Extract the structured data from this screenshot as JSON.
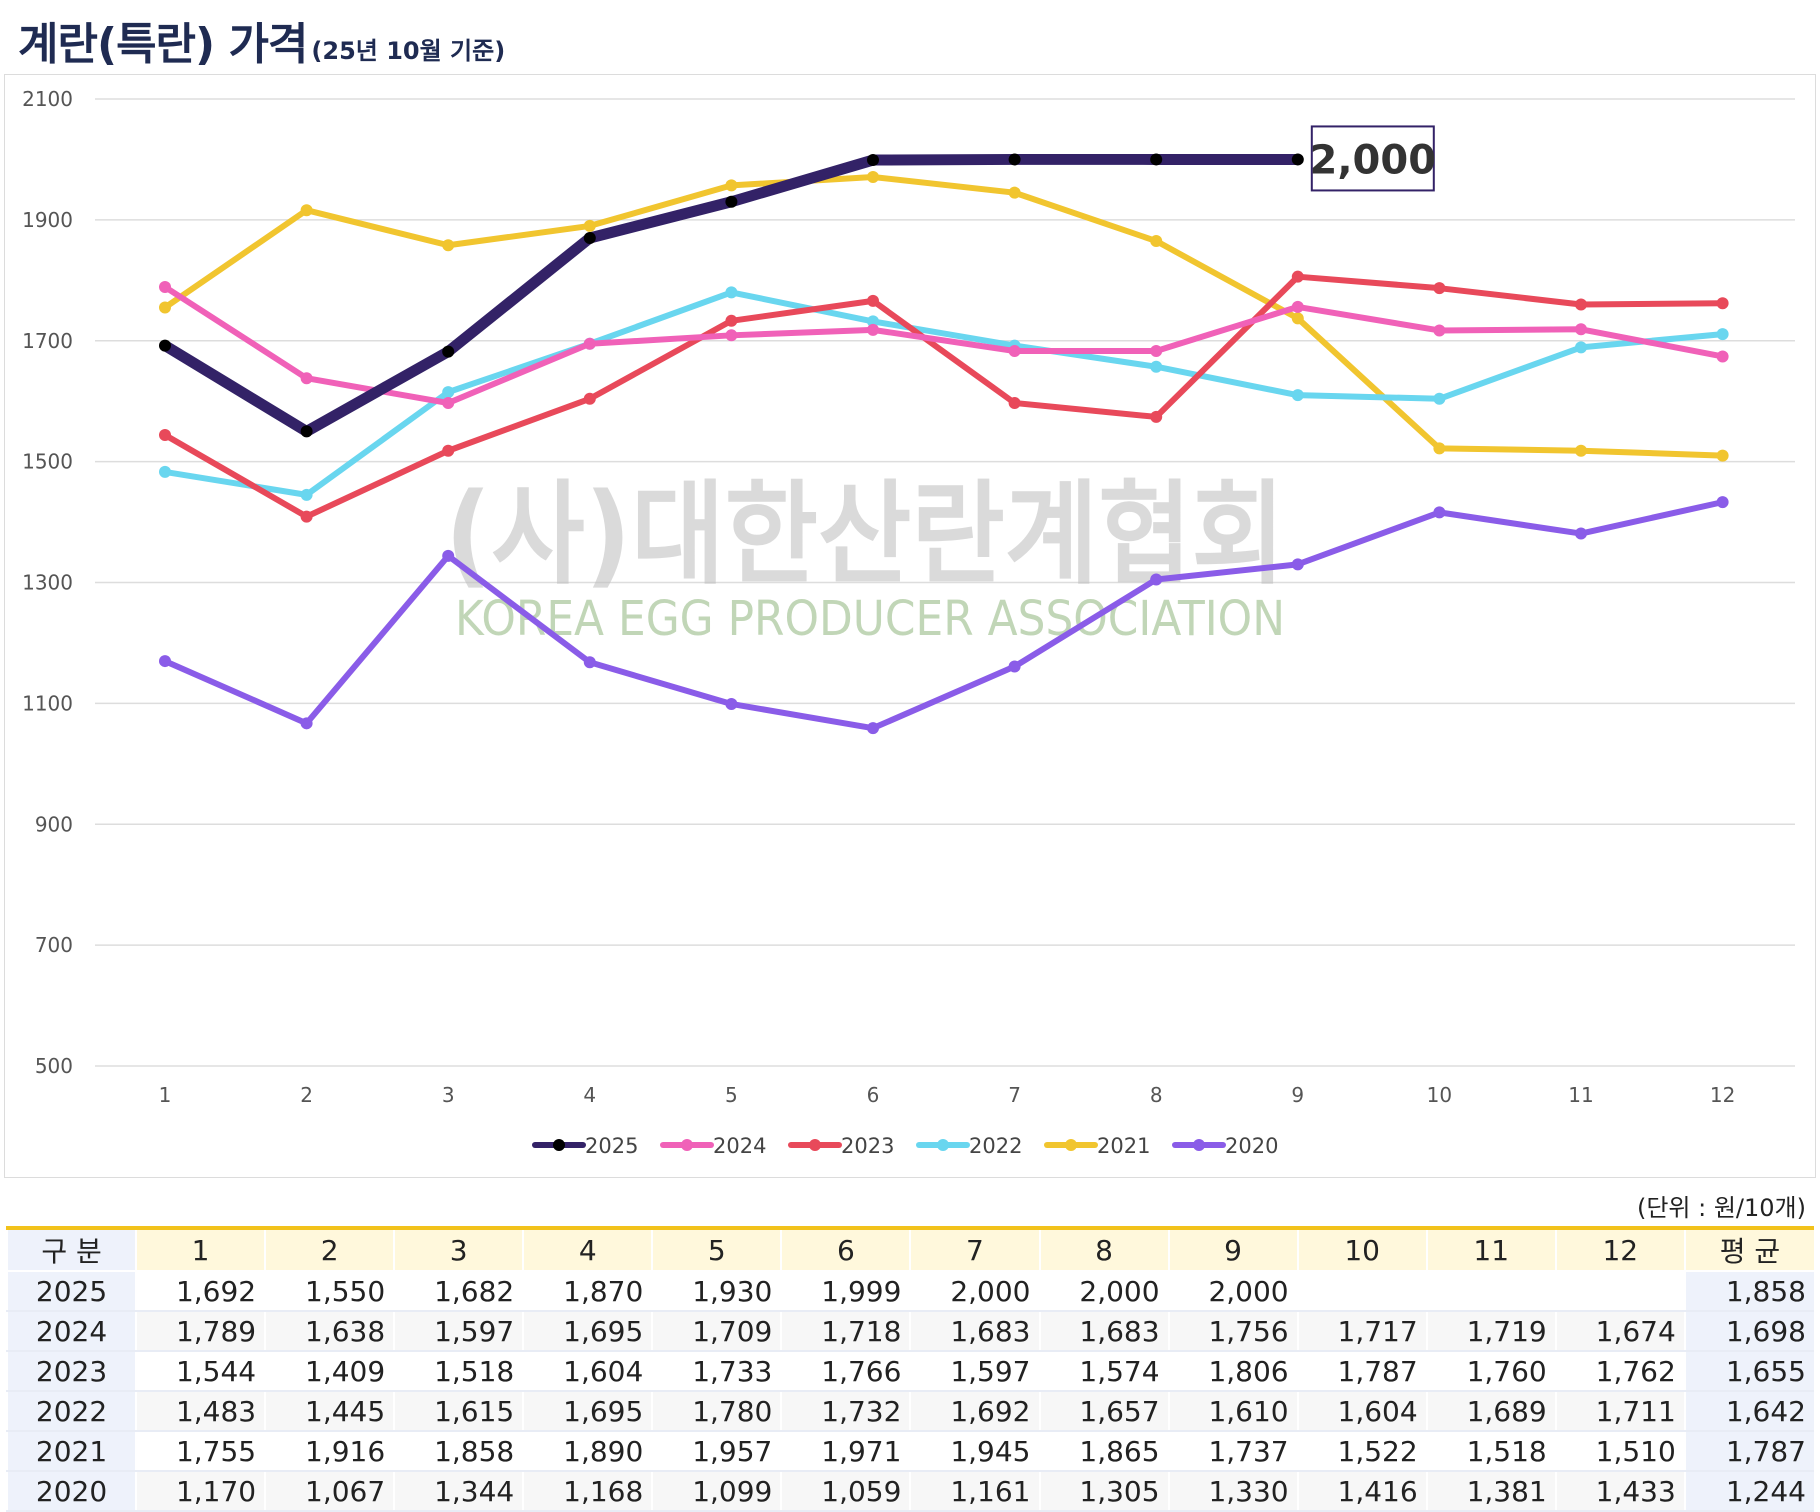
{
  "title": {
    "main": "계란(특란) 가격",
    "sub": "(25년 10월 기준)"
  },
  "watermark": {
    "korean": "(사)대한산란계협회",
    "english": "KOREA EGG PRODUCER ASSOCIATION"
  },
  "callout": {
    "label": "2,000"
  },
  "unit_label": "(단위 : 원/10개)",
  "colors": {
    "2025": "#332267",
    "2024": "#f061b8",
    "2023": "#e8495a",
    "2022": "#69d6ef",
    "2021": "#f1c52f",
    "2020": "#8a5ce8",
    "grid": "#dddddd",
    "table_accent": "#f2c21b"
  },
  "chart_data": {
    "type": "line",
    "title": "계란(특란) 가격",
    "subtitle": "(25년 10월 기준)",
    "xlabel": "",
    "ylabel": "",
    "categories": [
      "1",
      "2",
      "3",
      "4",
      "5",
      "6",
      "7",
      "8",
      "9",
      "10",
      "11",
      "12"
    ],
    "y_ticks": [
      500,
      700,
      900,
      1100,
      1300,
      1500,
      1700,
      1900,
      2100
    ],
    "ylim": [
      500,
      2100
    ],
    "grid": true,
    "legend_position": "bottom",
    "series": [
      {
        "name": "2025",
        "values": [
          1692,
          1550,
          1682,
          1870,
          1930,
          1999,
          2000,
          2000,
          2000,
          null,
          null,
          null
        ]
      },
      {
        "name": "2024",
        "values": [
          1789,
          1638,
          1597,
          1695,
          1709,
          1718,
          1683,
          1683,
          1756,
          1717,
          1719,
          1674
        ]
      },
      {
        "name": "2023",
        "values": [
          1544,
          1409,
          1518,
          1604,
          1733,
          1766,
          1597,
          1574,
          1806,
          1787,
          1760,
          1762
        ]
      },
      {
        "name": "2022",
        "values": [
          1483,
          1445,
          1615,
          1695,
          1780,
          1732,
          1692,
          1657,
          1610,
          1604,
          1689,
          1711
        ]
      },
      {
        "name": "2021",
        "values": [
          1755,
          1916,
          1858,
          1890,
          1957,
          1971,
          1945,
          1865,
          1737,
          1522,
          1518,
          1510
        ]
      },
      {
        "name": "2020",
        "values": [
          1170,
          1067,
          1344,
          1168,
          1099,
          1059,
          1161,
          1305,
          1330,
          1416,
          1381,
          1433
        ]
      }
    ]
  },
  "table": {
    "headers": [
      "구 분",
      "1",
      "2",
      "3",
      "4",
      "5",
      "6",
      "7",
      "8",
      "9",
      "10",
      "11",
      "12",
      "평 균"
    ],
    "rows": [
      {
        "year": "2025",
        "cells": [
          "1,692",
          "1,550",
          "1,682",
          "1,870",
          "1,930",
          "1,999",
          "2,000",
          "2,000",
          "2,000",
          "",
          "",
          ""
        ],
        "avg": "1,858"
      },
      {
        "year": "2024",
        "cells": [
          "1,789",
          "1,638",
          "1,597",
          "1,695",
          "1,709",
          "1,718",
          "1,683",
          "1,683",
          "1,756",
          "1,717",
          "1,719",
          "1,674"
        ],
        "avg": "1,698"
      },
      {
        "year": "2023",
        "cells": [
          "1,544",
          "1,409",
          "1,518",
          "1,604",
          "1,733",
          "1,766",
          "1,597",
          "1,574",
          "1,806",
          "1,787",
          "1,760",
          "1,762"
        ],
        "avg": "1,655"
      },
      {
        "year": "2022",
        "cells": [
          "1,483",
          "1,445",
          "1,615",
          "1,695",
          "1,780",
          "1,732",
          "1,692",
          "1,657",
          "1,610",
          "1,604",
          "1,689",
          "1,711"
        ],
        "avg": "1,642"
      },
      {
        "year": "2021",
        "cells": [
          "1,755",
          "1,916",
          "1,858",
          "1,890",
          "1,957",
          "1,971",
          "1,945",
          "1,865",
          "1,737",
          "1,522",
          "1,518",
          "1,510"
        ],
        "avg": "1,787"
      },
      {
        "year": "2020",
        "cells": [
          "1,170",
          "1,067",
          "1,344",
          "1,168",
          "1,099",
          "1,059",
          "1,161",
          "1,305",
          "1,330",
          "1,416",
          "1,381",
          "1,433"
        ],
        "avg": "1,244"
      }
    ]
  }
}
